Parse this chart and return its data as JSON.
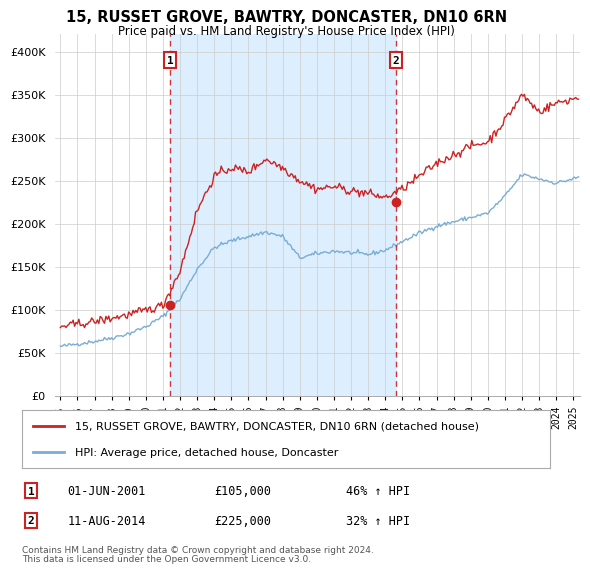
{
  "title": "15, RUSSET GROVE, BAWTRY, DONCASTER, DN10 6RN",
  "subtitle": "Price paid vs. HM Land Registry's House Price Index (HPI)",
  "legend_line1": "15, RUSSET GROVE, BAWTRY, DONCASTER, DN10 6RN (detached house)",
  "legend_line2": "HPI: Average price, detached house, Doncaster",
  "transaction1_date": "01-JUN-2001",
  "transaction1_price": 105000,
  "transaction1_pct": "46% ↑ HPI",
  "transaction2_date": "11-AUG-2014",
  "transaction2_price": 225000,
  "transaction2_pct": "32% ↑ HPI",
  "footnote1": "Contains HM Land Registry data © Crown copyright and database right 2024.",
  "footnote2": "This data is licensed under the Open Government Licence v3.0.",
  "xmin": 1994.7,
  "xmax": 2025.4,
  "ymin": 0,
  "ymax": 420000,
  "red_color": "#cc2222",
  "blue_color": "#7aadd4",
  "dashed_color": "#cc2222",
  "shade_color": "#ddeeff",
  "background_color": "#ffffff",
  "grid_color": "#cccccc"
}
